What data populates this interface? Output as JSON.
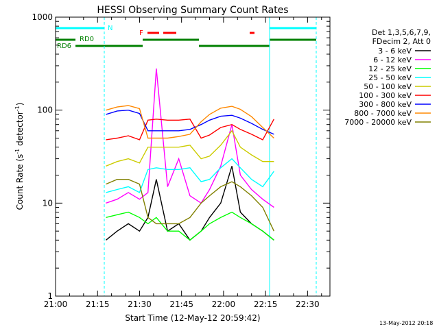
{
  "chart_data": {
    "type": "line",
    "title": "HESSI Observing Summary Count Rates",
    "xlabel": "Start Time (12-May-12 20:59:42)",
    "ylabel": "Count Rate (s⁻¹ detector⁻¹)",
    "ylabel_main": "Count Rate (s",
    "ylabel_sup1": "-1",
    "ylabel_mid": " detector",
    "ylabel_sup2": "-1",
    "ylabel_end": ")",
    "y_scale": "log",
    "ylim": [
      1,
      1000
    ],
    "xlim": [
      "21:00",
      "22:38"
    ],
    "x_ticks": [
      "21:00",
      "21:15",
      "21:30",
      "21:45",
      "22:00",
      "22:15",
      "22:30"
    ],
    "y_ticks": [
      "1",
      "10",
      "100",
      "1000"
    ],
    "grid": false,
    "legend_position": "right",
    "legend_header": [
      "Det 1,3,5,6,7,9,",
      "FDecim 2, Att 0"
    ],
    "footer_date": "13-May-2012 20:18",
    "annotations": {
      "night_label": "N",
      "flare_label": "F",
      "rd0_label": "RD0",
      "rd6_label": "RD6"
    },
    "series": [
      {
        "name": "3 - 6 keV",
        "color": "#000000",
        "x": [
          "21:18",
          "21:22",
          "21:26",
          "21:30",
          "21:33",
          "21:36",
          "21:40",
          "21:44",
          "21:48",
          "21:52",
          "21:55",
          "21:59",
          "22:03",
          "22:06",
          "22:10",
          "22:14",
          "22:18"
        ],
        "y": [
          4,
          5,
          6,
          5,
          7,
          18,
          5,
          6,
          4,
          5,
          7,
          10,
          25,
          8,
          6,
          5,
          4
        ]
      },
      {
        "name": "6 - 12 keV",
        "color": "#ff00ff",
        "x": [
          "21:18",
          "21:22",
          "21:26",
          "21:30",
          "21:33",
          "21:36",
          "21:40",
          "21:44",
          "21:48",
          "21:52",
          "21:55",
          "21:59",
          "22:03",
          "22:06",
          "22:10",
          "22:14",
          "22:18"
        ],
        "y": [
          10,
          11,
          13,
          11,
          13,
          280,
          15,
          30,
          12,
          10,
          14,
          25,
          70,
          20,
          14,
          11,
          9
        ]
      },
      {
        "name": "12 - 25 keV",
        "color": "#00ff00",
        "x": [
          "21:18",
          "21:22",
          "21:26",
          "21:30",
          "21:33",
          "21:36",
          "21:40",
          "21:44",
          "21:48",
          "21:52",
          "21:55",
          "21:59",
          "22:03",
          "22:06",
          "22:10",
          "22:14",
          "22:18"
        ],
        "y": [
          7,
          7.5,
          8,
          7,
          6,
          7,
          5,
          5,
          4,
          5,
          6,
          7,
          8,
          7,
          6,
          5,
          4
        ]
      },
      {
        "name": "25 - 50 keV",
        "color": "#00ffff",
        "x": [
          "21:18",
          "21:22",
          "21:26",
          "21:30",
          "21:33",
          "21:36",
          "21:40",
          "21:44",
          "21:48",
          "21:52",
          "21:55",
          "21:59",
          "22:03",
          "22:06",
          "22:10",
          "22:14",
          "22:18"
        ],
        "y": [
          13,
          14,
          15,
          13,
          23,
          24,
          23,
          23,
          24,
          17,
          18,
          24,
          30,
          24,
          18,
          15,
          22
        ]
      },
      {
        "name": "50 - 100 keV",
        "color": "#cccc00",
        "x": [
          "21:18",
          "21:22",
          "21:26",
          "21:30",
          "21:33",
          "21:36",
          "21:40",
          "21:44",
          "21:48",
          "21:52",
          "21:55",
          "21:59",
          "22:03",
          "22:06",
          "22:10",
          "22:14",
          "22:18"
        ],
        "y": [
          25,
          28,
          30,
          27,
          40,
          40,
          40,
          40,
          42,
          30,
          32,
          42,
          60,
          40,
          33,
          28,
          28
        ]
      },
      {
        "name": "100 - 300 keV",
        "color": "#ff0000",
        "x": [
          "21:18",
          "21:22",
          "21:26",
          "21:30",
          "21:33",
          "21:36",
          "21:40",
          "21:44",
          "21:48",
          "21:52",
          "21:55",
          "21:59",
          "22:03",
          "22:06",
          "22:10",
          "22:14",
          "22:18"
        ],
        "y": [
          48,
          50,
          53,
          48,
          78,
          80,
          78,
          78,
          80,
          50,
          54,
          65,
          70,
          62,
          55,
          48,
          80
        ]
      },
      {
        "name": "300 - 800 keV",
        "color": "#0000ff",
        "x": [
          "21:18",
          "21:22",
          "21:26",
          "21:30",
          "21:33",
          "21:36",
          "21:40",
          "21:44",
          "21:48",
          "21:52",
          "21:55",
          "21:59",
          "22:03",
          "22:06",
          "22:10",
          "22:14",
          "22:18"
        ],
        "y": [
          90,
          98,
          100,
          92,
          60,
          60,
          60,
          60,
          62,
          70,
          78,
          86,
          88,
          82,
          72,
          62,
          55
        ]
      },
      {
        "name": "800 - 7000 keV",
        "color": "#ff8800",
        "x": [
          "21:18",
          "21:22",
          "21:26",
          "21:30",
          "21:33",
          "21:36",
          "21:40",
          "21:44",
          "21:48",
          "21:52",
          "21:55",
          "21:59",
          "22:03",
          "22:06",
          "22:10",
          "22:14",
          "22:18"
        ],
        "y": [
          100,
          108,
          112,
          104,
          50,
          50,
          50,
          52,
          55,
          75,
          90,
          105,
          110,
          102,
          85,
          65,
          50
        ]
      },
      {
        "name": "7000 - 20000 keV",
        "color": "#808000",
        "x": [
          "21:18",
          "21:22",
          "21:26",
          "21:30",
          "21:33",
          "21:36",
          "21:40",
          "21:44",
          "21:48",
          "21:52",
          "21:55",
          "21:59",
          "22:03",
          "22:06",
          "22:10",
          "22:14",
          "22:18"
        ],
        "y": [
          16,
          18,
          18,
          16,
          7,
          6,
          6,
          6,
          7,
          10,
          12,
          15,
          17,
          15,
          12,
          9,
          5
        ]
      }
    ]
  }
}
